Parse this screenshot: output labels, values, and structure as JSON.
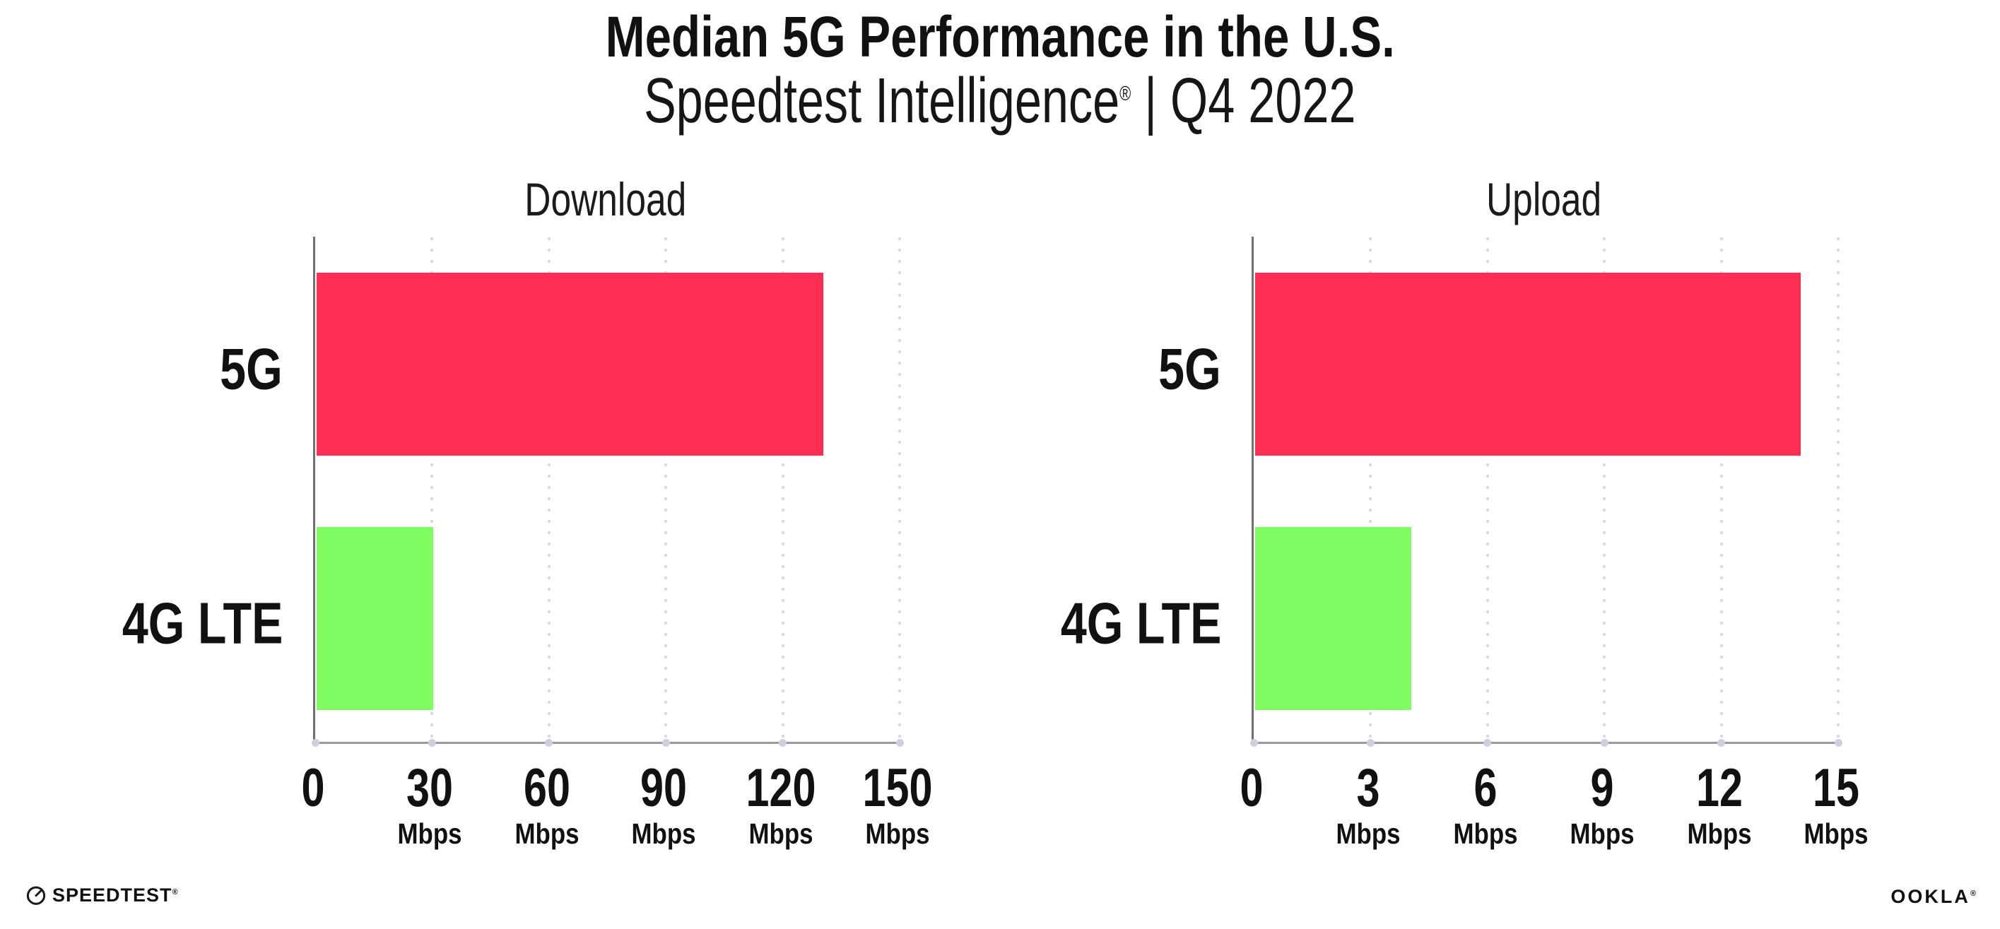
{
  "header": {
    "title": "Median 5G Performance in the U.S.",
    "subtitle_brand": "Speedtest Intelligence",
    "subtitle_reg": "®",
    "subtitle_rest": " | Q4 2022"
  },
  "chart_data": [
    {
      "type": "bar",
      "orientation": "horizontal",
      "title": "Download",
      "categories": [
        "5G",
        "4G LTE"
      ],
      "values": [
        130,
        30
      ],
      "bar_colors": [
        "#ff2e55",
        "#7ffd63"
      ],
      "xlabel": "",
      "ylabel": "",
      "unit": "Mbps",
      "xlim": [
        0,
        150
      ],
      "ticks": [
        0,
        30,
        60,
        90,
        120,
        150
      ],
      "tick_labels": [
        "0",
        "30",
        "60",
        "90",
        "120",
        "150"
      ],
      "grid": "dotted-vertical",
      "legend": "none"
    },
    {
      "type": "bar",
      "orientation": "horizontal",
      "title": "Upload",
      "categories": [
        "5G",
        "4G LTE"
      ],
      "values": [
        14,
        4
      ],
      "bar_colors": [
        "#ff2e55",
        "#7ffd63"
      ],
      "xlabel": "",
      "ylabel": "",
      "unit": "Mbps",
      "xlim": [
        0,
        15
      ],
      "ticks": [
        0,
        3,
        6,
        9,
        12,
        15
      ],
      "tick_labels": [
        "0",
        "3",
        "6",
        "9",
        "12",
        "15"
      ],
      "grid": "dotted-vertical",
      "legend": "none"
    }
  ],
  "footer": {
    "speedtest_logo_text": "SPEEDTEST",
    "speedtest_mark": "®",
    "ookla_logo_text": "OOKLA",
    "ookla_mark": "®"
  },
  "colors": {
    "bar_5g": "#ff2e55",
    "bar_4g_lte": "#7ffd63",
    "gridline": "#d9d9e6",
    "axis_x": "#9a9aa1",
    "axis_y": "#6e6e76",
    "text": "#111111",
    "background": "#ffffff"
  }
}
